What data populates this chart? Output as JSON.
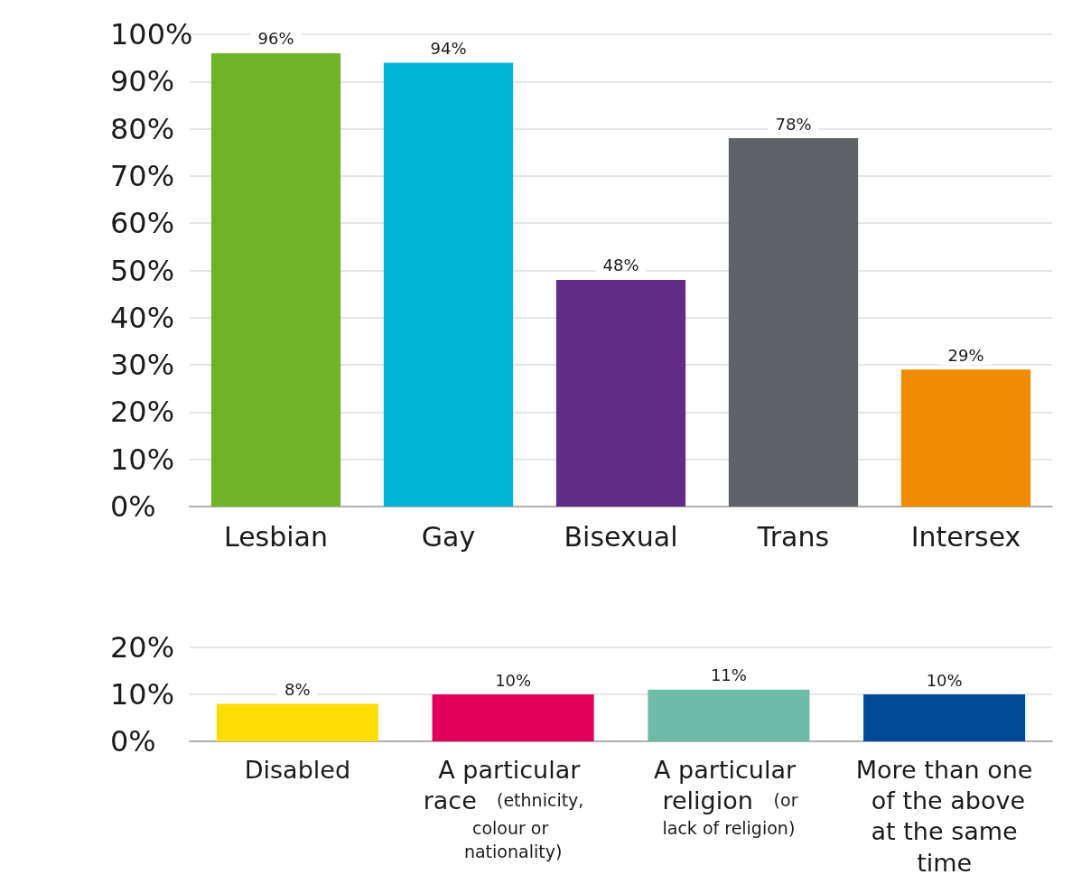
{
  "chart_data": [
    {
      "type": "bar",
      "categories": [
        "Lesbian",
        "Gay",
        "Bisexual",
        "Trans",
        "Intersex"
      ],
      "values": [
        96,
        94,
        48,
        78,
        29
      ],
      "colors": [
        "#70b22a",
        "#00b2d6",
        "#622d85",
        "#5e6266",
        "#f08c00"
      ],
      "value_labels": [
        "96%",
        "94%",
        "48%",
        "78%",
        "29%"
      ],
      "ylim": [
        0,
        100
      ],
      "yticks": [
        {
          "value": 0,
          "label": "0%"
        },
        {
          "value": 10,
          "label": "10%"
        },
        {
          "value": 20,
          "label": "20%"
        },
        {
          "value": 30,
          "label": "30%"
        },
        {
          "value": 40,
          "label": "40%"
        },
        {
          "value": 50,
          "label": "50%"
        },
        {
          "value": 60,
          "label": "60%"
        },
        {
          "value": 70,
          "label": "70%"
        },
        {
          "value": 80,
          "label": "80%"
        },
        {
          "value": 90,
          "label": "90%"
        },
        {
          "value": 100,
          "label": "100%"
        }
      ],
      "grid": "y"
    },
    {
      "type": "bar",
      "categories": [
        "Disabled",
        "A particular race\n(ethnicity, colour or nationality)",
        "A particular religion\n(or lack of religion)",
        "More than one of the above at the same time"
      ],
      "values": [
        8,
        10,
        11,
        10
      ],
      "colors": [
        "#ffdd00",
        "#e2005a",
        "#6cbca8",
        "#004a97"
      ],
      "value_labels": [
        "8%",
        "10%",
        "11%",
        "10%"
      ],
      "ylim": [
        0,
        20
      ],
      "yticks": [
        {
          "value": 0,
          "label": "0%"
        },
        {
          "value": 10,
          "label": "10%"
        },
        {
          "value": 20,
          "label": "20%"
        }
      ],
      "grid": "y"
    }
  ]
}
